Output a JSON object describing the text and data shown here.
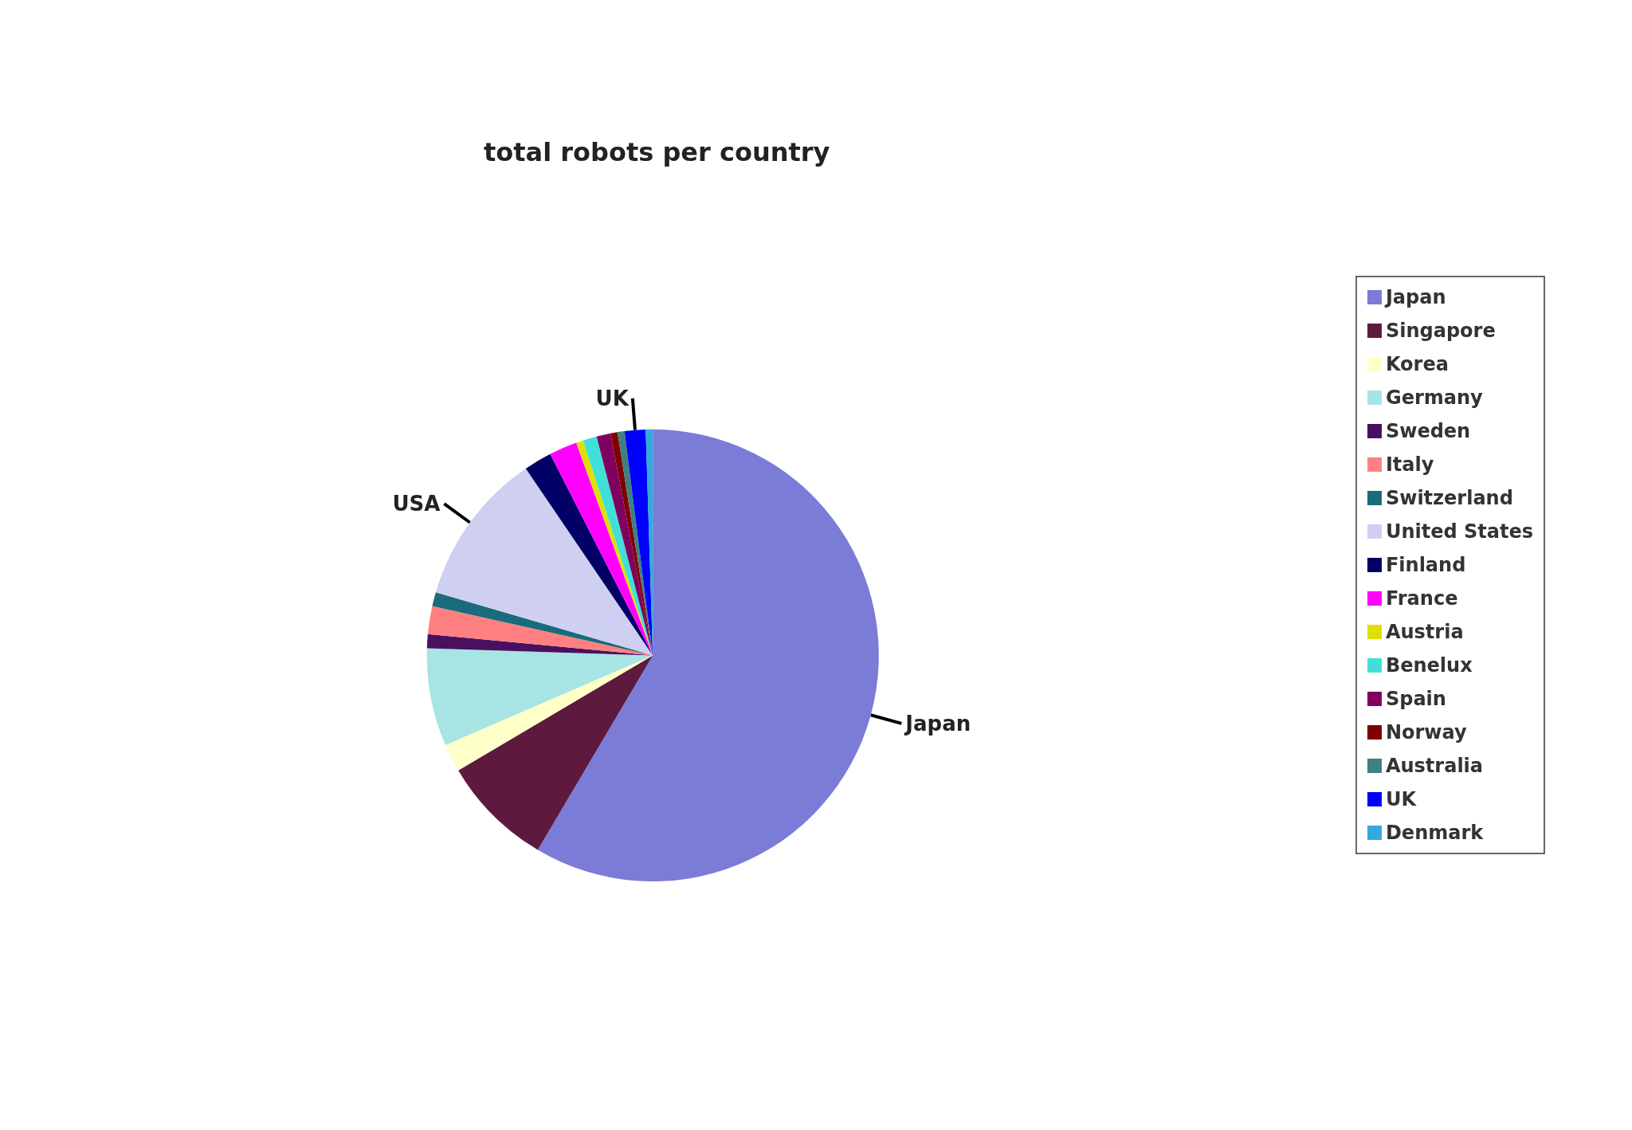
{
  "chart_data": {
    "type": "pie",
    "title": "total robots per country",
    "categories": [
      "Japan",
      "Singapore",
      "Korea",
      "Germany",
      "Sweden",
      "Italy",
      "Switzerland",
      "United States",
      "Finland",
      "France",
      "Austria",
      "Benelux",
      "Spain",
      "Norway",
      "Australia",
      "UK",
      "Denmark"
    ],
    "values": [
      58.5,
      8,
      2,
      7,
      1,
      2,
      1,
      11,
      2,
      2,
      0.5,
      1,
      1,
      0.5,
      0.5,
      1.5,
      0.5
    ],
    "colors": [
      "#7b7bd8",
      "#5e1a3e",
      "#ffffc8",
      "#a8e4e4",
      "#4a1060",
      "#ff8080",
      "#1a6b7b",
      "#cfcff2",
      "#000066",
      "#ff00ff",
      "#e0e000",
      "#40e0d8",
      "#800060",
      "#800000",
      "#3f8080",
      "#0000ff",
      "#33aadd"
    ],
    "annotations": [
      {
        "text": "USA",
        "x": "United States"
      },
      {
        "text": "UK",
        "x": "UK"
      },
      {
        "text": "Japan",
        "x": "Japan"
      }
    ],
    "legend": "right"
  }
}
